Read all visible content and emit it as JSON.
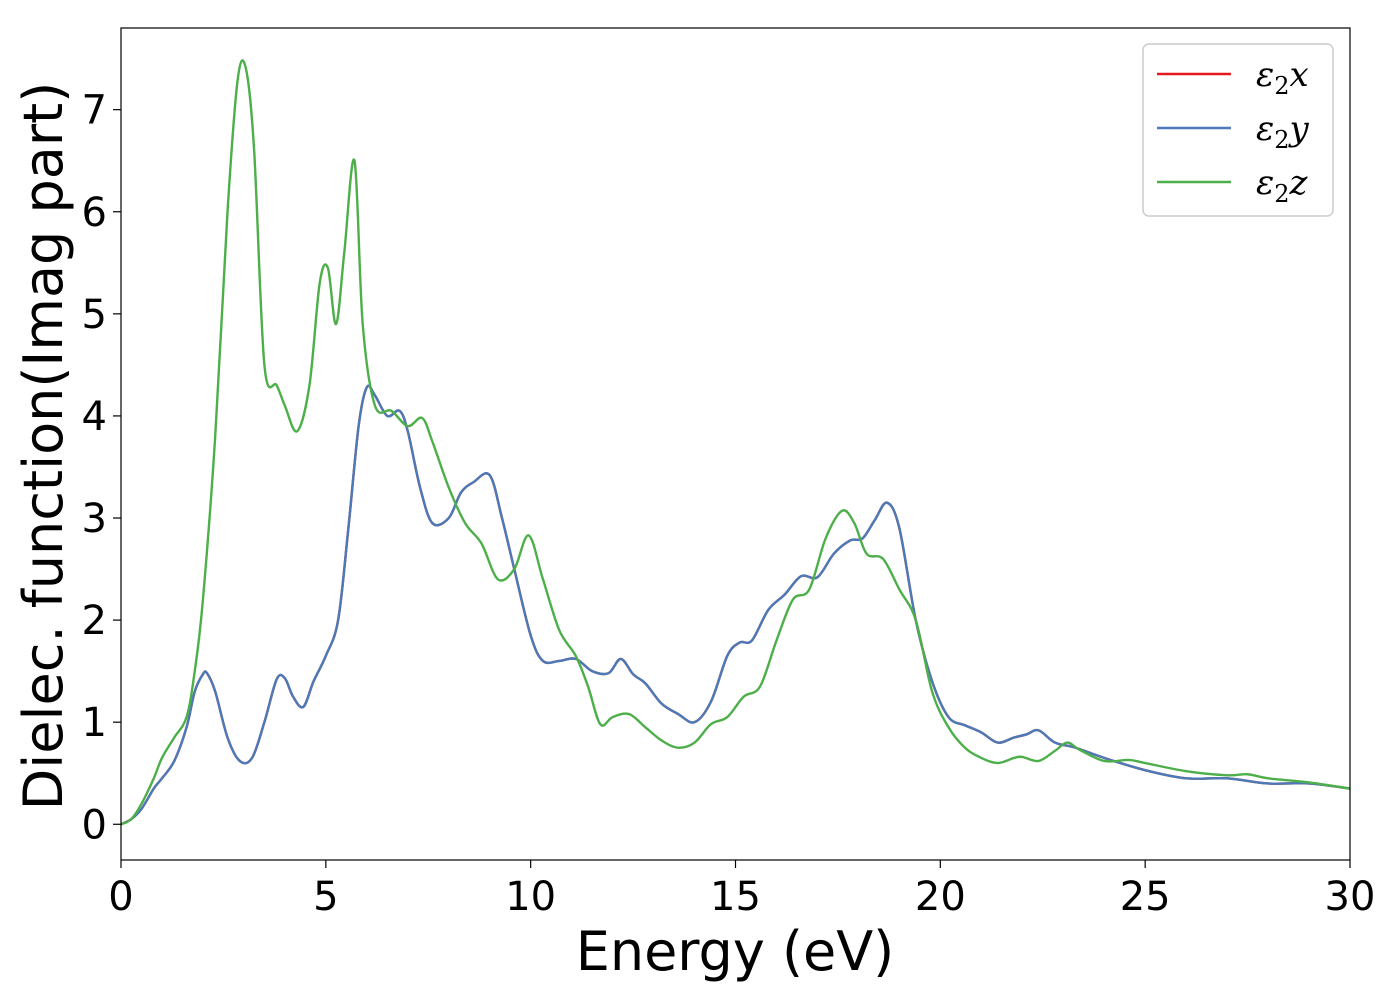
{
  "chart_data": {
    "type": "line",
    "title": "",
    "xlabel": "Energy (eV)",
    "ylabel": "Dielec. function(Imag part)",
    "xlim": [
      0,
      30
    ],
    "ylim": [
      -0.35,
      7.8
    ],
    "xticks": [
      0,
      5,
      10,
      15,
      20,
      25,
      30
    ],
    "yticks": [
      0,
      1,
      2,
      3,
      4,
      5,
      6,
      7
    ],
    "grid": false,
    "legend_position": "top-right",
    "series": [
      {
        "name": "ε2x",
        "symbol": "ε",
        "subscript": "2",
        "axis": "x",
        "color": "#e41a1c",
        "x": [
          0,
          0.25,
          0.5,
          0.8,
          1.0,
          1.3,
          1.6,
          1.8,
          2.0,
          2.1,
          2.3,
          2.6,
          2.9,
          3.2,
          3.5,
          3.8,
          4.0,
          4.2,
          4.45,
          4.7,
          5.0,
          5.3,
          5.55,
          5.8,
          6.0,
          6.2,
          6.5,
          6.8,
          7.0,
          7.3,
          7.6,
          8.0,
          8.3,
          8.6,
          9.0,
          9.3,
          9.6,
          10.0,
          10.3,
          10.7,
          11.1,
          11.5,
          11.9,
          12.2,
          12.5,
          12.8,
          13.2,
          13.6,
          14.0,
          14.4,
          14.8,
          15.1,
          15.4,
          15.8,
          16.2,
          16.6,
          17.0,
          17.4,
          17.8,
          18.1,
          18.4,
          18.7,
          19.0,
          19.4,
          19.8,
          20.2,
          20.6,
          21.0,
          21.4,
          21.8,
          22.1,
          22.4,
          22.8,
          23.3,
          24.0,
          25.0,
          26.0,
          27.0,
          28.0,
          29.0,
          30.0
        ],
        "y": [
          0.0,
          0.05,
          0.15,
          0.35,
          0.45,
          0.62,
          0.95,
          1.3,
          1.47,
          1.48,
          1.3,
          0.85,
          0.62,
          0.65,
          1.0,
          1.42,
          1.43,
          1.25,
          1.15,
          1.4,
          1.65,
          2.0,
          2.9,
          3.9,
          4.28,
          4.2,
          4.0,
          4.05,
          3.85,
          3.3,
          2.95,
          3.0,
          3.25,
          3.35,
          3.42,
          3.0,
          2.5,
          1.85,
          1.6,
          1.6,
          1.62,
          1.5,
          1.48,
          1.62,
          1.47,
          1.38,
          1.18,
          1.08,
          1.0,
          1.2,
          1.65,
          1.78,
          1.8,
          2.1,
          2.25,
          2.43,
          2.42,
          2.65,
          2.78,
          2.8,
          2.98,
          3.15,
          2.9,
          2.0,
          1.4,
          1.05,
          0.97,
          0.9,
          0.8,
          0.85,
          0.88,
          0.92,
          0.8,
          0.75,
          0.65,
          0.53,
          0.45,
          0.45,
          0.4,
          0.4,
          0.35
        ]
      },
      {
        "name": "ε2y",
        "symbol": "ε",
        "subscript": "2",
        "axis": "y",
        "color": "#4a7ab7",
        "x": [
          0,
          0.25,
          0.5,
          0.8,
          1.0,
          1.3,
          1.6,
          1.8,
          2.0,
          2.1,
          2.3,
          2.6,
          2.9,
          3.2,
          3.5,
          3.8,
          4.0,
          4.2,
          4.45,
          4.7,
          5.0,
          5.3,
          5.55,
          5.8,
          6.0,
          6.2,
          6.5,
          6.8,
          7.0,
          7.3,
          7.6,
          8.0,
          8.3,
          8.6,
          9.0,
          9.3,
          9.6,
          10.0,
          10.3,
          10.7,
          11.1,
          11.5,
          11.9,
          12.2,
          12.5,
          12.8,
          13.2,
          13.6,
          14.0,
          14.4,
          14.8,
          15.1,
          15.4,
          15.8,
          16.2,
          16.6,
          17.0,
          17.4,
          17.8,
          18.1,
          18.4,
          18.7,
          19.0,
          19.4,
          19.8,
          20.2,
          20.6,
          21.0,
          21.4,
          21.8,
          22.1,
          22.4,
          22.8,
          23.3,
          24.0,
          25.0,
          26.0,
          27.0,
          28.0,
          29.0,
          30.0
        ],
        "y": [
          0.0,
          0.05,
          0.15,
          0.35,
          0.45,
          0.62,
          0.95,
          1.3,
          1.47,
          1.48,
          1.3,
          0.85,
          0.62,
          0.65,
          1.0,
          1.42,
          1.43,
          1.25,
          1.15,
          1.4,
          1.65,
          2.0,
          2.9,
          3.9,
          4.28,
          4.2,
          4.0,
          4.05,
          3.85,
          3.3,
          2.95,
          3.0,
          3.25,
          3.35,
          3.42,
          3.0,
          2.5,
          1.85,
          1.6,
          1.6,
          1.62,
          1.5,
          1.48,
          1.62,
          1.47,
          1.38,
          1.18,
          1.08,
          1.0,
          1.2,
          1.65,
          1.78,
          1.8,
          2.1,
          2.25,
          2.43,
          2.42,
          2.65,
          2.78,
          2.8,
          2.98,
          3.15,
          2.9,
          2.0,
          1.4,
          1.05,
          0.97,
          0.9,
          0.8,
          0.85,
          0.88,
          0.92,
          0.8,
          0.75,
          0.65,
          0.53,
          0.45,
          0.45,
          0.4,
          0.4,
          0.35
        ]
      },
      {
        "name": "ε2z",
        "symbol": "ε",
        "subscript": "2",
        "axis": "z",
        "color": "#4daf4a",
        "x": [
          0,
          0.25,
          0.5,
          0.8,
          1.0,
          1.3,
          1.6,
          1.8,
          2.0,
          2.3,
          2.6,
          2.85,
          3.05,
          3.25,
          3.5,
          3.8,
          4.0,
          4.3,
          4.6,
          4.85,
          5.05,
          5.25,
          5.45,
          5.7,
          5.9,
          6.2,
          6.6,
          7.0,
          7.35,
          7.6,
          8.0,
          8.4,
          8.8,
          9.2,
          9.6,
          9.95,
          10.3,
          10.7,
          11.1,
          11.4,
          11.7,
          12.0,
          12.4,
          12.8,
          13.2,
          13.6,
          14.0,
          14.4,
          14.8,
          15.2,
          15.6,
          16.0,
          16.4,
          16.8,
          17.2,
          17.6,
          17.9,
          18.2,
          18.6,
          19.0,
          19.4,
          19.8,
          20.2,
          20.6,
          21.0,
          21.4,
          21.8,
          22.0,
          22.4,
          22.8,
          23.1,
          23.4,
          24.0,
          24.6,
          25.0,
          26.0,
          27.0,
          27.5,
          28.0,
          29.0,
          30.0
        ],
        "y": [
          0.0,
          0.05,
          0.2,
          0.45,
          0.65,
          0.85,
          1.05,
          1.5,
          2.2,
          3.8,
          6.0,
          7.3,
          7.4,
          6.6,
          4.5,
          4.3,
          4.1,
          3.85,
          4.3,
          5.3,
          5.45,
          4.9,
          5.6,
          6.5,
          4.9,
          4.1,
          4.05,
          3.9,
          3.98,
          3.75,
          3.3,
          2.95,
          2.75,
          2.4,
          2.5,
          2.83,
          2.4,
          1.9,
          1.65,
          1.35,
          0.98,
          1.05,
          1.08,
          0.95,
          0.82,
          0.75,
          0.8,
          0.98,
          1.05,
          1.25,
          1.35,
          1.8,
          2.2,
          2.3,
          2.8,
          3.07,
          2.95,
          2.65,
          2.6,
          2.3,
          2.0,
          1.3,
          0.95,
          0.75,
          0.65,
          0.6,
          0.65,
          0.66,
          0.62,
          0.72,
          0.8,
          0.73,
          0.62,
          0.63,
          0.6,
          0.52,
          0.48,
          0.49,
          0.45,
          0.41,
          0.35
        ]
      }
    ]
  }
}
